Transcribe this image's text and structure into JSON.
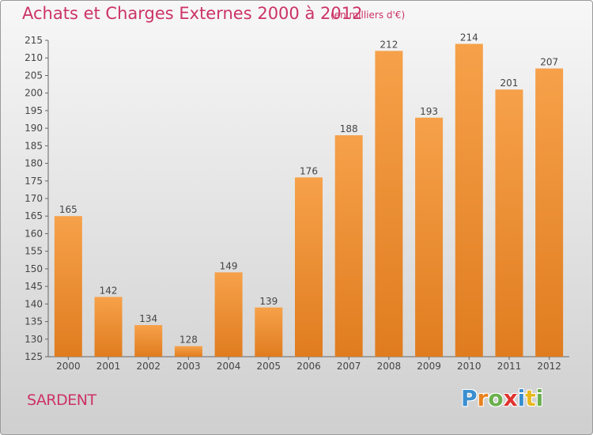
{
  "title": "Achats et Charges Externes 2000 à 2012",
  "subtitle": "(en milliers d'€)",
  "place": "SARDENT",
  "logo": {
    "letters": [
      "P",
      "r",
      "o",
      "x",
      "i",
      "t",
      "i"
    ],
    "colors": [
      "#3a8fd0",
      "#e8821e",
      "#6ab04c",
      "#e0342f",
      "#3a8fd0",
      "#e8b81e",
      "#6ab04c"
    ]
  },
  "colors": {
    "bar_top": "#f6a14a",
    "bar_bottom": "#e07c1f",
    "text": "#444444",
    "accent": "#cc3366"
  },
  "chart_data": {
    "type": "bar",
    "categories": [
      "2000",
      "2001",
      "2002",
      "2003",
      "2004",
      "2005",
      "2006",
      "2007",
      "2008",
      "2009",
      "2010",
      "2011",
      "2012"
    ],
    "values": [
      165,
      142,
      134,
      128,
      149,
      139,
      176,
      188,
      212,
      193,
      214,
      201,
      207
    ],
    "ylim": [
      125,
      215
    ],
    "yticks": [
      125,
      130,
      135,
      140,
      145,
      150,
      155,
      160,
      165,
      170,
      175,
      180,
      185,
      190,
      195,
      200,
      205,
      210,
      215
    ],
    "grid": false,
    "data_labels": true
  }
}
